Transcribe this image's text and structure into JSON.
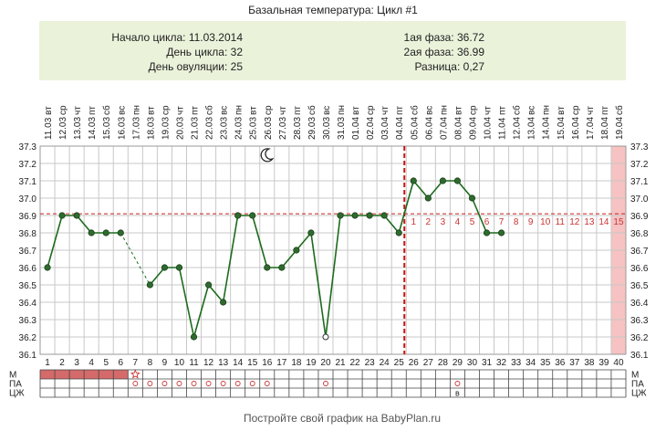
{
  "title": "Базальная температура: Цикл #1",
  "info": {
    "cycle_start_label": "Начало цикла: 11.03.2014",
    "cycle_day_label": "День цикла: 32",
    "ovulation_day_label": "День овуляции: 25",
    "phase1_label": "1ая фаза: 36.72",
    "phase2_label": "2ая фаза: 36.99",
    "difference_label": "Разница: 0,27"
  },
  "footer": "Постройте свой график на BabyPlan.ru",
  "chart_data": {
    "type": "line",
    "x_days": [
      1,
      2,
      3,
      4,
      5,
      6,
      7,
      8,
      9,
      10,
      11,
      12,
      13,
      14,
      15,
      16,
      17,
      18,
      19,
      20,
      21,
      22,
      23,
      24,
      25,
      26,
      27,
      28,
      29,
      30,
      31,
      32,
      33,
      34,
      35,
      36,
      37,
      38,
      39,
      40
    ],
    "dates": [
      "11.03",
      "12.03",
      "13.03",
      "14.03",
      "15.03",
      "16.03",
      "17.03",
      "18.03",
      "19.03",
      "20.03",
      "21.03",
      "22.03",
      "23.03",
      "24.03",
      "25.03",
      "26.03",
      "27.03",
      "28.03",
      "29.03",
      "30.03",
      "31.03",
      "01.04",
      "02.04",
      "03.04",
      "04.04",
      "05.04",
      "06.04",
      "07.04",
      "08.04",
      "09.04",
      "10.04",
      "11.04",
      "12.04",
      "13.04",
      "14.04",
      "15.04",
      "16.04",
      "17.04",
      "18.04",
      "19.04"
    ],
    "weekdays": [
      "вт",
      "ср",
      "чт",
      "пт",
      "сб",
      "вс",
      "пн",
      "вт",
      "ср",
      "чт",
      "пт",
      "сб",
      "вс",
      "пн",
      "вт",
      "ср",
      "чт",
      "пт",
      "сб",
      "вс",
      "пн",
      "вт",
      "ср",
      "чт",
      "пт",
      "сб",
      "вс",
      "пн",
      "вт",
      "ср",
      "чт",
      "пт",
      "сб",
      "вс",
      "пн",
      "вт",
      "ср",
      "чт",
      "пт",
      "сб"
    ],
    "y_ticks": [
      "37.3",
      "37.2",
      "37.1",
      "37.0",
      "36.9",
      "36.8",
      "36.7",
      "36.6",
      "36.5",
      "36.4",
      "36.3",
      "36.2",
      "36.1"
    ],
    "ylim": [
      36.1,
      37.3
    ],
    "temperatures": [
      36.6,
      36.9,
      36.9,
      36.8,
      36.8,
      36.8,
      null,
      36.5,
      36.6,
      36.6,
      36.2,
      36.5,
      36.4,
      36.9,
      36.9,
      36.6,
      36.6,
      36.7,
      36.8,
      36.2,
      36.9,
      36.9,
      36.9,
      36.9,
      36.8,
      37.1,
      37.0,
      37.1,
      37.1,
      37.0,
      36.8,
      36.8
    ],
    "dashed_segments": [
      [
        6,
        8
      ]
    ],
    "hollow_points": [
      20
    ],
    "coverline": 36.91,
    "ovulation_day": 25,
    "luteal_day_numbers": [
      "1",
      "2",
      "3",
      "4",
      "5",
      "6",
      "7",
      "8",
      "9",
      "10",
      "11",
      "12",
      "13",
      "14",
      "15"
    ],
    "highlight_day": 40,
    "moon_day": 16,
    "rows": [
      {
        "label": "М",
        "filled_days": [
          1,
          2,
          3,
          4,
          5,
          6
        ],
        "star_day": 7
      },
      {
        "label": "ПА",
        "circle_days": [
          7,
          8,
          9,
          10,
          11,
          12,
          13,
          14,
          15,
          16,
          20,
          29
        ]
      },
      {
        "label": "ЦЖ",
        "text_marks": [
          {
            "day": 29,
            "text": "в"
          }
        ]
      }
    ],
    "colors": {
      "line": "#1c6b1c",
      "point": "#2e6b2e",
      "coverline": "#cc2222",
      "luteal_numbers": "#cc3333",
      "menses": "#d46a6a",
      "highlight": "#f6c2c2",
      "info_bg": "#eaf2da",
      "grid": "#c8c8c8"
    }
  }
}
